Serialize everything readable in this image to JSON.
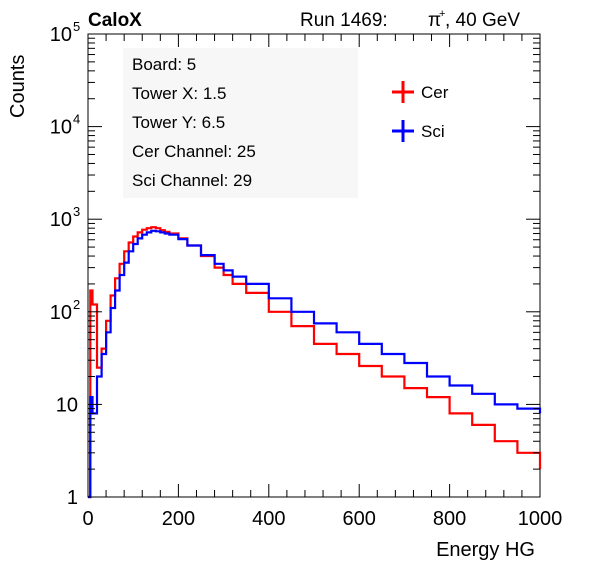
{
  "header": {
    "experiment": "CaloX",
    "run_label": "Run 1469:",
    "particle": "π",
    "particle_charge": "+",
    "energy": ", 40 GeV"
  },
  "info_box": {
    "lines": [
      "Board: 5",
      "Tower X: 1.5",
      "Tower Y: 6.5",
      "Cer Channel: 25",
      "Sci Channel: 29"
    ]
  },
  "chart_data": {
    "type": "line",
    "xlabel": "Energy HG",
    "ylabel": "Counts",
    "xlim": [
      0,
      1000
    ],
    "ylim": [
      1,
      100000
    ],
    "log_y": true,
    "x_ticks": [
      0,
      200,
      400,
      600,
      800,
      1000
    ],
    "y_ticks": [
      {
        "value": 1,
        "label": "1"
      },
      {
        "value": 10,
        "label": "10"
      },
      {
        "value": 100,
        "label": "10",
        "exp": "2"
      },
      {
        "value": 1000,
        "label": "10",
        "exp": "3"
      },
      {
        "value": 10000,
        "label": "10",
        "exp": "4"
      },
      {
        "value": 100000,
        "label": "10",
        "exp": "5"
      }
    ],
    "legend_position": "top-right",
    "series": [
      {
        "name": "Cer",
        "color": "#ff0000",
        "x": [
          0,
          5,
          10,
          20,
          30,
          40,
          50,
          60,
          70,
          80,
          90,
          100,
          110,
          120,
          130,
          140,
          150,
          160,
          170,
          180,
          200,
          220,
          250,
          280,
          300,
          320,
          350,
          400,
          450,
          500,
          550,
          600,
          650,
          700,
          750,
          800,
          850,
          900,
          950,
          1000
        ],
        "y": [
          1,
          170,
          120,
          25,
          40,
          80,
          150,
          230,
          330,
          450,
          560,
          650,
          720,
          770,
          800,
          820,
          800,
          760,
          730,
          700,
          620,
          520,
          400,
          300,
          250,
          200,
          160,
          100,
          70,
          45,
          35,
          26,
          20,
          15,
          12,
          8,
          6,
          4,
          3,
          2
        ]
      },
      {
        "name": "Sci",
        "color": "#0000ff",
        "x": [
          0,
          5,
          10,
          20,
          30,
          40,
          50,
          60,
          70,
          80,
          90,
          100,
          110,
          120,
          130,
          140,
          150,
          160,
          170,
          180,
          200,
          220,
          250,
          280,
          300,
          320,
          350,
          400,
          450,
          500,
          550,
          600,
          650,
          700,
          750,
          800,
          850,
          900,
          950,
          1000
        ],
        "y": [
          1,
          12,
          8,
          20,
          35,
          60,
          110,
          170,
          250,
          340,
          450,
          540,
          620,
          680,
          720,
          750,
          740,
          720,
          700,
          680,
          610,
          520,
          410,
          330,
          280,
          240,
          200,
          140,
          100,
          75,
          60,
          45,
          35,
          28,
          20,
          16,
          13,
          10,
          9,
          8
        ]
      }
    ]
  }
}
